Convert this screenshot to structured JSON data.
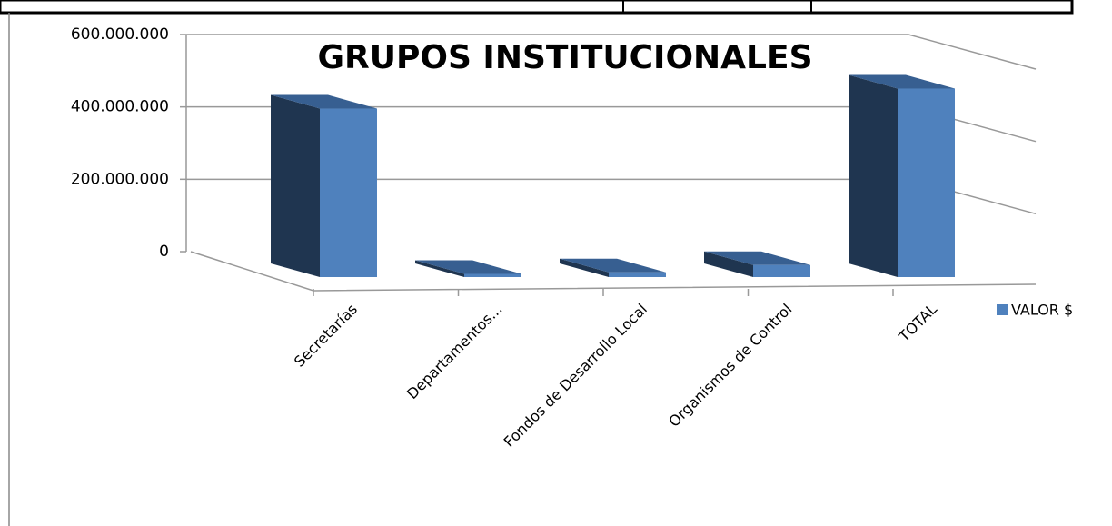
{
  "chart_data": {
    "type": "bar3d",
    "title": "GRUPOS INSTITUCIONALES",
    "categories": [
      "Secretarías",
      "Departamentos...",
      "Fondos de Desarrollo Local",
      "Organismos de Control",
      "TOTAL"
    ],
    "series": [
      {
        "name": "VALOR $",
        "color": "#4f81bd",
        "values": [
          420000000,
          8000000,
          12000000,
          30000000,
          470000000
        ]
      }
    ],
    "ylim": [
      0,
      600000000
    ],
    "yticks": [
      0,
      {
        "value": 200000000,
        "label": "200.000.000"
      },
      {
        "value": 400000000,
        "label": "400.000.000"
      },
      {
        "value": 600000000,
        "label": "600.000.000"
      }
    ],
    "grid": true,
    "legend": "right"
  }
}
